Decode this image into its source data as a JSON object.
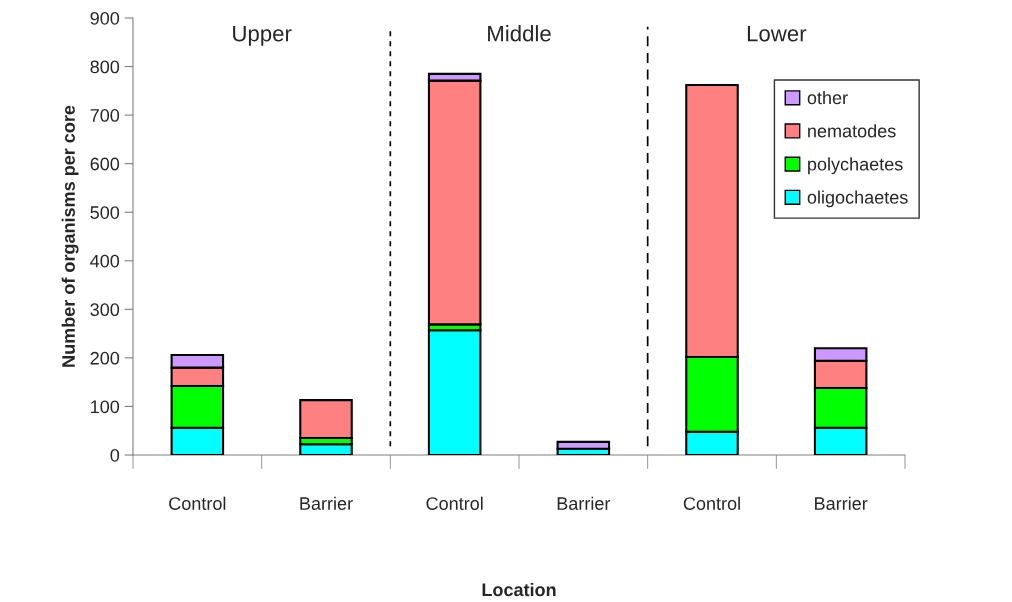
{
  "chart_data": {
    "type": "bar",
    "stacked": true,
    "xlabel": "Location",
    "ylabel": "Number of organisms per core",
    "categories": [
      "Control",
      "Barrier",
      "Control",
      "Barrier",
      "Control",
      "Barrier"
    ],
    "series": [
      {
        "name": "oligochaetes",
        "color": "#00ffff",
        "values": [
          56,
          22,
          257,
          13,
          48,
          56
        ]
      },
      {
        "name": "polychaetes",
        "color": "#00ff00",
        "values": [
          86,
          13,
          12,
          null,
          154,
          82
        ]
      },
      {
        "name": "nematodes",
        "color": "#ff8080",
        "values": [
          38,
          78,
          502,
          null,
          560,
          56
        ]
      },
      {
        "name": "other",
        "color": "#cc99ff",
        "values": [
          26,
          null,
          14,
          14,
          null,
          26
        ]
      }
    ],
    "annotations": [
      "Upper",
      "Middle",
      "Lower"
    ],
    "ylim": [
      0,
      900
    ],
    "yticks": [
      0,
      100,
      200,
      300,
      400,
      500,
      600,
      700,
      800,
      900
    ],
    "grid": false,
    "legend": "right"
  }
}
